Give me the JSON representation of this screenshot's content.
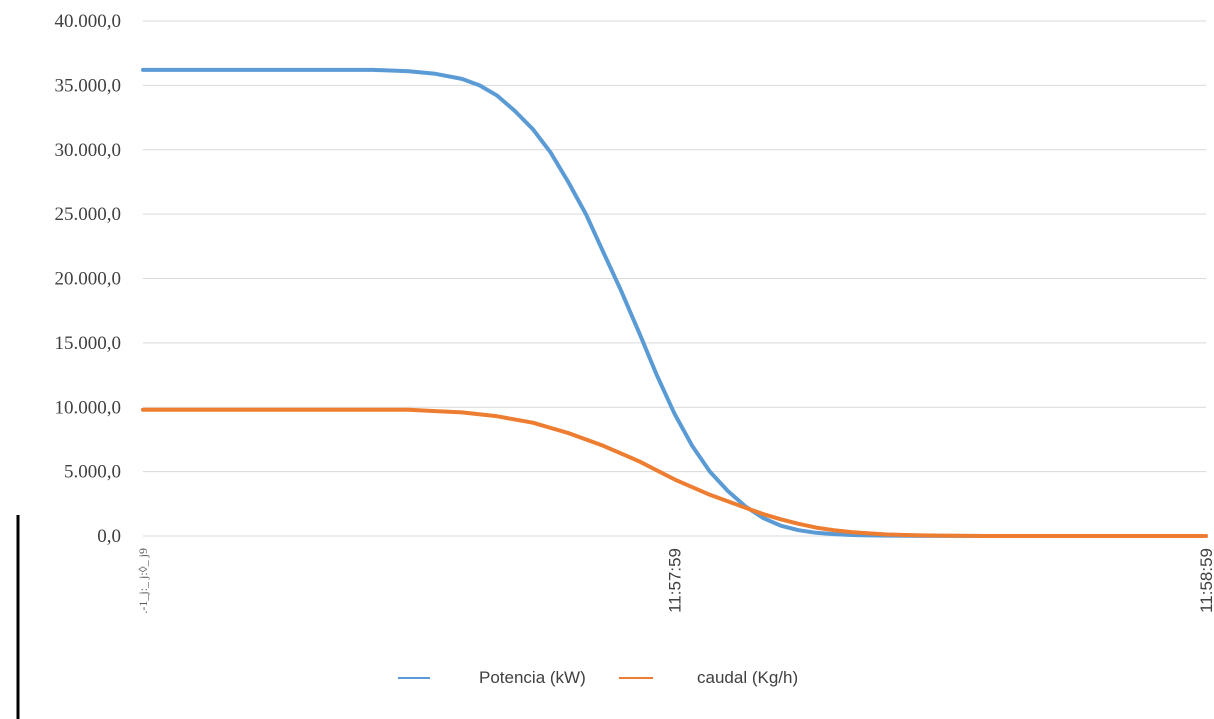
{
  "chart_data": {
    "type": "line",
    "title": "",
    "xlabel": "",
    "ylabel": "",
    "ylim": [
      0,
      40000
    ],
    "yticks": [
      {
        "value": 0,
        "label": "0,0"
      },
      {
        "value": 5000,
        "label": "5.000,0"
      },
      {
        "value": 10000,
        "label": "10.000,0"
      },
      {
        "value": 15000,
        "label": "15.000,0"
      },
      {
        "value": 20000,
        "label": "20.000,0"
      },
      {
        "value": 25000,
        "label": "25.000,0"
      },
      {
        "value": 30000,
        "label": "30.000,0"
      },
      {
        "value": 35000,
        "label": "35.000,0"
      },
      {
        "value": 40000,
        "label": "40.000,0"
      }
    ],
    "xlim": [
      0,
      120
    ],
    "x_unit": "seconds from first sample",
    "xticks": [
      {
        "value": 0,
        "label": ".-1_j:_ j:◊_ j9",
        "garbled": true
      },
      {
        "value": 60,
        "label": "11:57:59"
      },
      {
        "value": 120,
        "label": "11:58:59"
      }
    ],
    "grid": true,
    "legend": "bottom",
    "series": [
      {
        "name": "Potencia (kW)",
        "color": "#5B9BD5",
        "x": [
          0,
          10,
          20,
          26,
          30,
          33,
          36,
          38,
          40,
          42,
          44,
          46,
          48,
          50,
          52,
          54,
          56,
          58,
          60,
          62,
          64,
          66,
          68,
          70,
          72,
          74,
          76,
          78,
          80,
          82,
          84,
          86,
          88,
          90,
          95,
          100,
          105,
          110,
          115,
          120
        ],
        "values": [
          36200,
          36200,
          36200,
          36200,
          36100,
          35900,
          35500,
          35000,
          34200,
          33000,
          31600,
          29800,
          27500,
          25000,
          22000,
          19000,
          15800,
          12500,
          9500,
          7000,
          5000,
          3500,
          2300,
          1400,
          800,
          450,
          250,
          150,
          80,
          50,
          30,
          20,
          10,
          5,
          0,
          0,
          0,
          0,
          0,
          0
        ]
      },
      {
        "name": "caudal (Kg/h)",
        "color": "#ED7D31",
        "x": [
          0,
          10,
          20,
          30,
          33,
          36,
          40,
          44,
          48,
          52,
          56,
          60,
          64,
          68,
          70,
          72,
          74,
          76,
          78,
          80,
          82,
          84,
          86,
          88,
          90,
          92,
          95,
          100,
          105,
          110,
          115,
          120
        ],
        "values": [
          9800,
          9800,
          9800,
          9800,
          9700,
          9600,
          9300,
          8800,
          8000,
          7000,
          5800,
          4400,
          3200,
          2200,
          1700,
          1300,
          950,
          650,
          450,
          300,
          200,
          120,
          80,
          50,
          30,
          20,
          0,
          0,
          0,
          0,
          0,
          0
        ]
      }
    ]
  }
}
